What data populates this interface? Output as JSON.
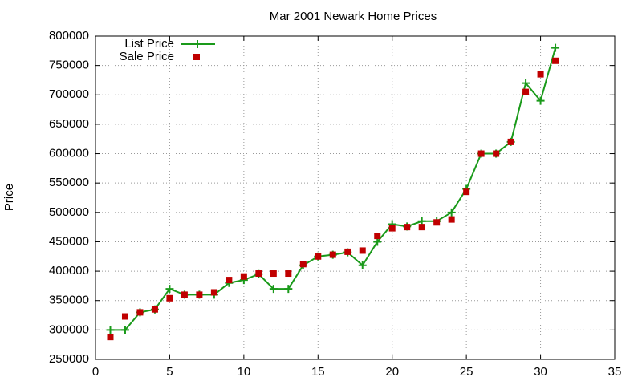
{
  "chart_data": {
    "type": "line",
    "title": "Mar 2001 Newark Home Prices",
    "y_label": "Price",
    "x": [
      1,
      2,
      3,
      4,
      5,
      6,
      7,
      8,
      9,
      10,
      11,
      12,
      13,
      14,
      15,
      16,
      17,
      18,
      19,
      20,
      21,
      22,
      23,
      24,
      25,
      26,
      27,
      28,
      29,
      30,
      31
    ],
    "series": [
      {
        "name": "List Price",
        "color": "#1a9a1a",
        "line": true,
        "marker": "plus",
        "values": [
          300000,
          300000,
          330000,
          335000,
          370000,
          360000,
          360000,
          360000,
          380000,
          385000,
          395000,
          370000,
          370000,
          410000,
          425000,
          428000,
          432000,
          410000,
          450000,
          480000,
          476000,
          485000,
          485000,
          500000,
          540000,
          600000,
          600000,
          620000,
          720000,
          690000,
          780000
        ]
      },
      {
        "name": "Sale Price",
        "color": "#c00000",
        "line": false,
        "marker": "square",
        "values": [
          288000,
          323000,
          330000,
          335000,
          354000,
          360000,
          360000,
          364000,
          385000,
          391000,
          396000,
          396000,
          396000,
          412000,
          425000,
          428000,
          433000,
          435000,
          460000,
          473000,
          475000,
          475000,
          483000,
          488000,
          535000,
          600000,
          600000,
          620000,
          705000,
          735000,
          758000
        ]
      }
    ],
    "xlim": [
      0,
      35
    ],
    "xticks": [
      0,
      5,
      10,
      15,
      20,
      25,
      30,
      35
    ],
    "ylim": [
      250000,
      800000
    ],
    "yticks": [
      250000,
      300000,
      350000,
      400000,
      450000,
      500000,
      550000,
      600000,
      650000,
      700000,
      750000,
      800000
    ],
    "grid": true,
    "legend": "top-left"
  }
}
